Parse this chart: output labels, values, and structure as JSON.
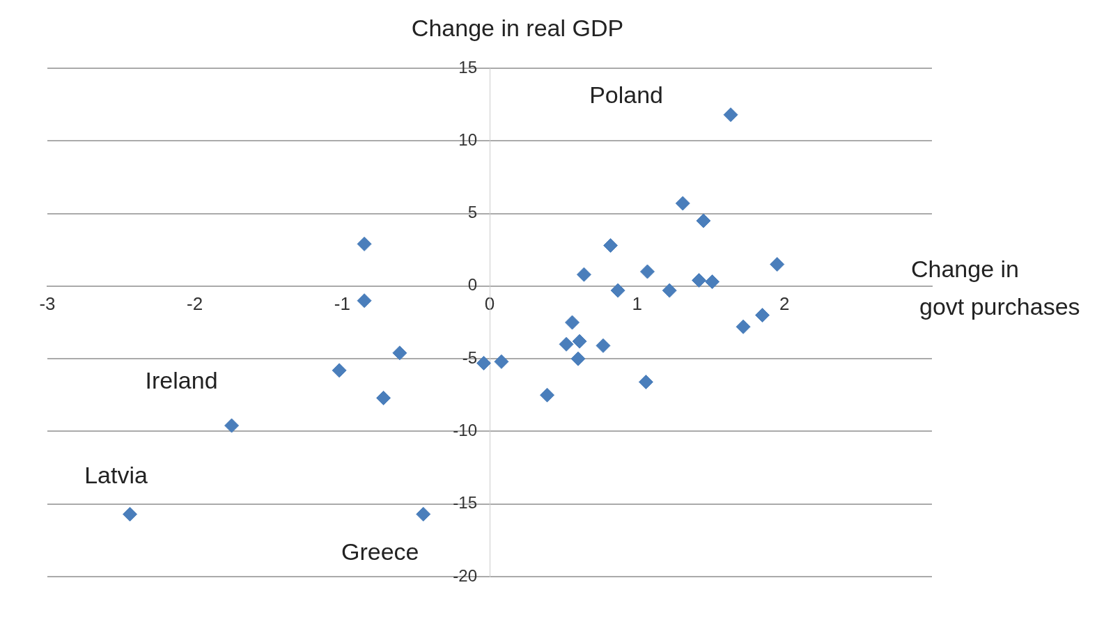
{
  "chart_data": {
    "type": "scatter",
    "ylabel": "Change in real GDP",
    "xlabel": "Change in govt purchases",
    "x": [
      1.635,
      1.31,
      1.45,
      -0.85,
      0.82,
      1.95,
      0.64,
      1.07,
      1.42,
      1.51,
      0.87,
      1.22,
      -0.85,
      0.56,
      1.85,
      1.72,
      -0.61,
      0.52,
      0.61,
      0.77,
      0.6,
      -0.04,
      0.08,
      -1.02,
      1.06,
      0.39,
      -0.72,
      -1.75,
      -2.44,
      -0.45
    ],
    "values": [
      11.8,
      5.7,
      4.5,
      2.9,
      2.8,
      1.5,
      0.8,
      1.0,
      0.4,
      0.3,
      -0.3,
      -0.3,
      -1.0,
      -2.5,
      -2.0,
      -2.8,
      -4.6,
      -4.0,
      -3.8,
      -4.1,
      -5.0,
      -5.3,
      -5.2,
      -5.8,
      -6.6,
      -7.5,
      -7.7,
      -9.6,
      -15.7,
      -15.7
    ],
    "color": "#4a7ebb",
    "marker": "diamond",
    "grid": "y",
    "legend": false,
    "xlim": [
      -3,
      3
    ],
    "xticks": [
      -3,
      -2,
      -1,
      0,
      1,
      2
    ],
    "ylim": [
      -20,
      15
    ],
    "yticks": [
      -20,
      -15,
      -10,
      -5,
      0,
      5,
      10,
      15
    ],
    "annotations": [
      {
        "text": "Poland",
        "x": 1.635,
        "y": 11.8
      },
      {
        "text": "Ireland",
        "x": -1.75,
        "y": -9.6
      },
      {
        "text": "Latvia",
        "x": -2.44,
        "y": -15.7
      },
      {
        "text": "Greece",
        "x": -0.45,
        "y": -15.7
      }
    ]
  }
}
